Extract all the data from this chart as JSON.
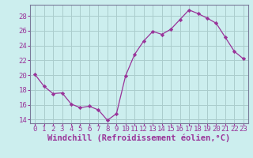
{
  "x": [
    0,
    1,
    2,
    3,
    4,
    5,
    6,
    7,
    8,
    9,
    10,
    11,
    12,
    13,
    14,
    15,
    16,
    17,
    18,
    19,
    20,
    21,
    22,
    23
  ],
  "y": [
    20.1,
    18.5,
    17.5,
    17.6,
    16.1,
    15.6,
    15.8,
    15.3,
    13.9,
    14.8,
    19.9,
    22.8,
    24.6,
    25.9,
    25.5,
    26.2,
    27.5,
    28.8,
    28.3,
    27.7,
    27.0,
    25.1,
    23.2,
    22.2
  ],
  "line_color": "#993399",
  "marker_color": "#993399",
  "bg_color": "#cceeee",
  "grid_color": "#aacccc",
  "xlabel": "Windchill (Refroidissement éolien,°C)",
  "ylim": [
    13.5,
    29.5
  ],
  "yticks": [
    14,
    16,
    18,
    20,
    22,
    24,
    26,
    28
  ],
  "xticks": [
    0,
    1,
    2,
    3,
    4,
    5,
    6,
    7,
    8,
    9,
    10,
    11,
    12,
    13,
    14,
    15,
    16,
    17,
    18,
    19,
    20,
    21,
    22,
    23
  ],
  "xlabel_fontsize": 7.5,
  "tick_fontsize": 6.5,
  "tick_color": "#993399",
  "axis_color": "#7a7a9a",
  "spine_color": "#7a7a9a"
}
